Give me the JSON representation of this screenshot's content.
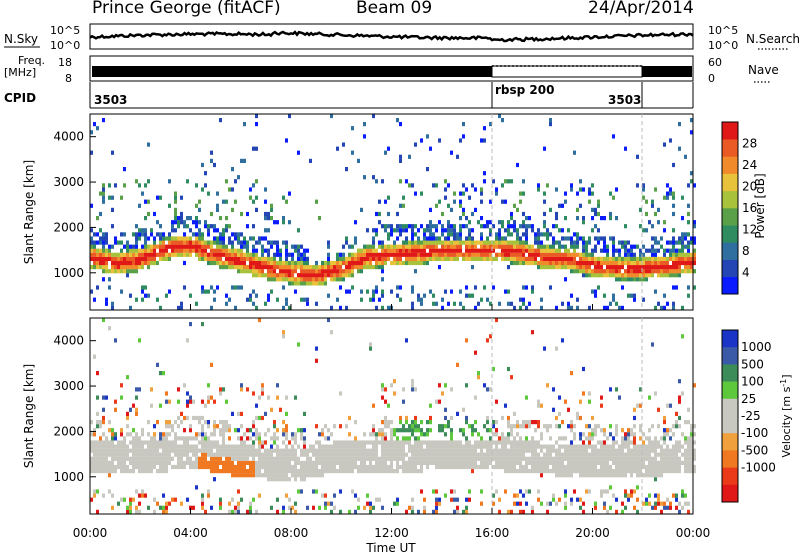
{
  "header": {
    "radar": "Prince George (fitACF)",
    "beam": "Beam 09",
    "date": "24/Apr/2014"
  },
  "status_panels": {
    "nsky_label": "N.Sky",
    "nsky_ticks": [
      "10^5",
      "10^0"
    ],
    "nsearch_label": "N.Search",
    "freq_label_1": "Freq.",
    "freq_label_2": "[MHz]",
    "freq_ticks": [
      "18",
      "8"
    ],
    "nave_ticks": [
      "60",
      "0"
    ],
    "nave_label": "Nave",
    "cpid_label": "CPID",
    "cpid_segments": [
      {
        "label": "3503",
        "start_h": 0,
        "end_h": 16
      },
      {
        "label": "rbsp 200",
        "start_h": 16,
        "end_h": 22
      },
      {
        "label": "3503",
        "start_h": 22,
        "end_h": 24
      }
    ]
  },
  "chart_data": [
    {
      "type": "heatmap",
      "title": "",
      "ylabel": "Slant Range [km]",
      "xlim": [
        0,
        24
      ],
      "ylim": [
        180,
        4500
      ],
      "y_ticks": [
        1000,
        2000,
        3000,
        4000
      ],
      "colorbar": {
        "label": "Power [dB]",
        "range": [
          0,
          32
        ],
        "ticks": [
          4,
          8,
          12,
          16,
          20,
          24,
          28
        ],
        "colors": [
          "#0a1cff",
          "#2346b4",
          "#2e6fa0",
          "#2f8c60",
          "#5aa048",
          "#a8c23c",
          "#e8c23a",
          "#f08a2a",
          "#ea5a24",
          "#e01818"
        ]
      },
      "main_band_km": [
        [
          0,
          1300
        ],
        [
          1,
          1150
        ],
        [
          2,
          1250
        ],
        [
          3,
          1500
        ],
        [
          4,
          1550
        ],
        [
          5,
          1350
        ],
        [
          6,
          1200
        ],
        [
          7,
          1050
        ],
        [
          8,
          950
        ],
        [
          9,
          900
        ],
        [
          10,
          1050
        ],
        [
          11,
          1300
        ],
        [
          12,
          1350
        ],
        [
          13,
          1400
        ],
        [
          14,
          1450
        ],
        [
          15,
          1450
        ],
        [
          16,
          1450
        ],
        [
          17,
          1400
        ],
        [
          18,
          1300
        ],
        [
          19,
          1250
        ],
        [
          20,
          1100
        ],
        [
          21,
          1050
        ],
        [
          22,
          1050
        ],
        [
          23,
          1100
        ],
        [
          24,
          1200
        ]
      ]
    },
    {
      "type": "heatmap",
      "title": "",
      "ylabel": "Slant Range [km]",
      "xlabel": "Time UT",
      "xlim": [
        0,
        24
      ],
      "ylim": [
        180,
        4500
      ],
      "x_ticks": [
        "00:00",
        "04:00",
        "08:00",
        "12:00",
        "16:00",
        "20:00",
        "00:00"
      ],
      "y_ticks": [
        1000,
        2000,
        3000,
        4000
      ],
      "colorbar": {
        "label": "Velocity [m s",
        "label_exp": "-1",
        "label_end": "]",
        "ticks": [
          "1000",
          "500",
          "100",
          "25",
          "-25",
          "-100",
          "-500",
          "-1000"
        ],
        "colors": [
          "#1a34c8",
          "#3a5aa8",
          "#3c8c5a",
          "#5ec83c",
          "#c8c8c0",
          "#c8c8c0",
          "#f0a03c",
          "#f07820",
          "#ea3a1a",
          "#e01818"
        ]
      },
      "ground_scatter_band_km": [
        [
          0,
          1400
        ],
        [
          2,
          1350
        ],
        [
          4,
          1500
        ],
        [
          6,
          1300
        ],
        [
          8,
          1200
        ],
        [
          10,
          1400
        ],
        [
          12,
          1400
        ],
        [
          14,
          1450
        ],
        [
          16,
          1450
        ],
        [
          18,
          1350
        ],
        [
          20,
          1300
        ],
        [
          22,
          1300
        ],
        [
          24,
          1400
        ]
      ]
    }
  ]
}
